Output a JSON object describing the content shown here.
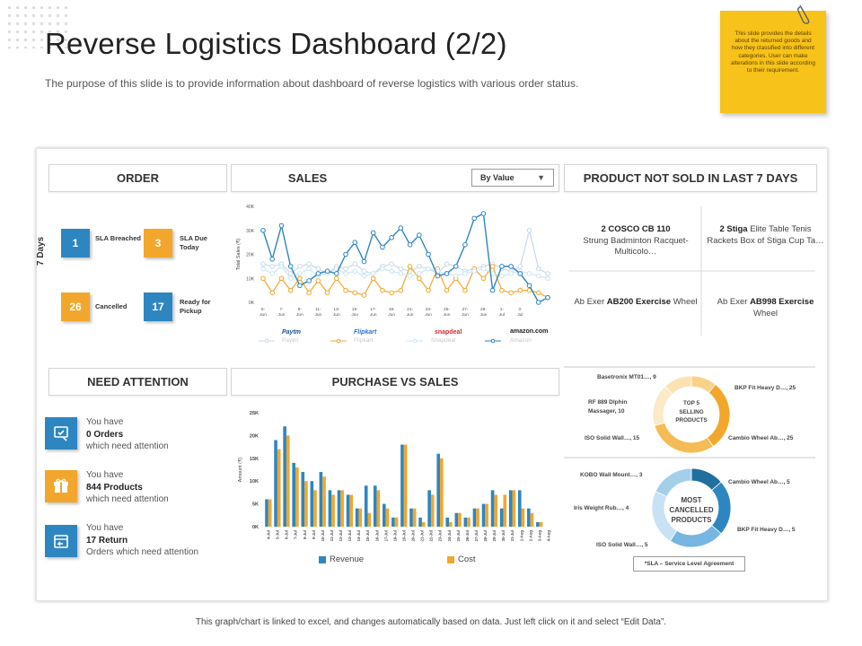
{
  "page": {
    "title": "Reverse Logistics Dashboard (2/2)",
    "subtitle": "The purpose of this slide is to provide information about dashboard of reverse  logistics with various order status.",
    "note": "This slide provides the details about the returned goods and how they classified into different categories. User can make alterations in this slide according to their requirement.",
    "footer": "This graph/chart is linked to excel, and changes automatically based on data. Just left click on it and select “Edit Data”."
  },
  "colors": {
    "blue": "#2e86c1",
    "orange": "#f2a72c",
    "light_blue": "#a9d3ee",
    "light_orange": "#fbe0b0"
  },
  "order": {
    "header": "ORDER",
    "axis_label": "7 Days",
    "tiles": [
      {
        "value": "1",
        "label": "SLA Breached",
        "color": "blue"
      },
      {
        "value": "3",
        "label": "SLA Due Today",
        "color": "orange"
      },
      {
        "value": "26",
        "label": "Cancelled",
        "color": "orange"
      },
      {
        "value": "17",
        "label": "Ready for Pickup",
        "color": "blue"
      }
    ]
  },
  "sales": {
    "header": "SALES",
    "dropdown": "By Value",
    "brands": [
      "Paytm",
      "Flipkart",
      "snapdeal",
      "amazon.com"
    ],
    "legend_ghost": [
      "Paytm",
      "Flipkart",
      "Snapdeal",
      "Amazon"
    ]
  },
  "not_sold": {
    "header": "PRODUCT NOT SOLD IN LAST 7 DAYS",
    "items": [
      {
        "bold": "2 COSCO CB 110",
        "rest": "Strung Badminton Racquet-Multicolo…"
      },
      {
        "bold": "2 Stiga",
        "rest": "Elite Table Tenis Rackets Box of Stiga Cup Ta…"
      },
      {
        "pre": "Ab Exer ",
        "bold": "AB200 Exercise",
        "rest": "Wheel"
      },
      {
        "pre": "Ab Exer ",
        "bold": "AB998 Exercise",
        "rest": "Wheel"
      }
    ]
  },
  "attention": {
    "header": "NEED ATTENTION",
    "items": [
      {
        "pre": "You have",
        "strong": "0 Orders",
        "post": "which need attention",
        "icon": "order-icon",
        "color": "blue"
      },
      {
        "pre": "You have",
        "strong": "844 Products",
        "post": "which need attention",
        "icon": "gift-box-icon",
        "color": "orange"
      },
      {
        "pre": "You have",
        "strong": "17 Return",
        "post": "Orders which need attention",
        "icon": "return-box-icon",
        "color": "blue"
      }
    ]
  },
  "purchase": {
    "header": "PURCHASE VS SALES"
  },
  "donuts": {
    "top_selling": {
      "center": "TOP 5 SELLING PRODUCTS",
      "labels": [
        "Basetronix MT01…, 9",
        "BKP Fit Heavy D…, 25",
        "RF 889 Dlphin Massager, 10",
        "ISO Solid Wall…, 15",
        "Cambio Wheel Ab…, 25"
      ]
    },
    "most_cancelled": {
      "center": "MOST CANCELLED PRODUCTS",
      "labels": [
        "KOBO Wall Mount…, 3",
        "Cambio Wheel Ab…, 5",
        "Iris Weight Rub…, 4",
        "BKP Fit Heavy D…, 5",
        "ISO Solid Wall…, 5"
      ]
    },
    "sla_note": "*SLA – Service Level Agreement"
  },
  "chart_data": [
    {
      "type": "line",
      "title": "Sales",
      "ylabel": "Total Sales (₹)",
      "ylim": [
        0,
        40
      ],
      "yticks": [
        "0K",
        "10K",
        "20K",
        "30K",
        "40K"
      ],
      "x": [
        "5-Jun",
        "6-Jun",
        "7-Jun",
        "8-Jun",
        "9-Jun",
        "10-Jun",
        "11-Jun",
        "12-Jun",
        "13-Jun",
        "14-Jun",
        "15-Jun",
        "16-Jun",
        "17-Jun",
        "18-Jun",
        "19-Jun",
        "20-Jun",
        "21-Jun",
        "22-Jun",
        "23-Jun",
        "24-Jun",
        "25-Jun",
        "26-Jun",
        "27-Jun",
        "28-Jun",
        "29-Jun",
        "30-Jun",
        "1-Jul",
        "2-Jul",
        "3-Jul",
        "4-Jul",
        "5-Jul",
        "6-Jul"
      ],
      "xticks": [
        "5-Jun",
        "7-Jun",
        "9-Jun",
        "11-Jun",
        "13-Jun",
        "15-Jun",
        "17-Jun",
        "19-Jun",
        "21-Jun",
        "23-Jun",
        "25-Jun",
        "27-Jun",
        "29-Jun",
        "1-Jul",
        "3-Jul"
      ],
      "series": [
        {
          "name": "Paytm",
          "color": "#c9d9ea",
          "values": [
            16,
            15,
            16,
            12,
            15,
            16,
            14,
            12,
            15,
            14,
            16,
            13,
            12,
            15,
            16,
            14,
            13,
            15,
            14,
            12,
            16,
            15,
            13,
            14,
            15,
            16,
            14,
            13,
            15,
            30,
            14,
            12
          ]
        },
        {
          "name": "Flipkart",
          "color": "#f2a72c",
          "values": [
            10,
            4,
            10,
            5,
            10,
            4,
            9,
            4,
            10,
            5,
            4,
            3,
            10,
            5,
            4,
            5,
            15,
            10,
            5,
            14,
            5,
            10,
            5,
            14,
            10,
            15,
            5,
            4,
            5,
            5,
            4,
            2
          ]
        },
        {
          "name": "Snapdeal",
          "color": "#c9e6f7",
          "values": [
            14,
            12,
            15,
            10,
            12,
            14,
            11,
            12,
            14,
            12,
            13,
            11,
            12,
            14,
            13,
            12,
            11,
            12,
            14,
            13,
            12,
            11,
            12,
            13,
            14,
            12,
            11,
            12,
            13,
            12,
            11,
            10
          ]
        },
        {
          "name": "Amazon",
          "color": "#2e86c1",
          "values": [
            30,
            18,
            32,
            15,
            7,
            9,
            12,
            13,
            12,
            20,
            25,
            17,
            29,
            23,
            27,
            31,
            24,
            28,
            20,
            11,
            12,
            15,
            24,
            35,
            37,
            5,
            15,
            15,
            12,
            7,
            0,
            2
          ]
        }
      ]
    },
    {
      "type": "bar",
      "title": "Purchase vs Sales",
      "ylabel": "Amount (₹)",
      "ylim": [
        0,
        25
      ],
      "yticks": [
        "0K",
        "5K",
        "10K",
        "15K",
        "20K",
        "25K"
      ],
      "categories": [
        "4-Jul",
        "5-Jul",
        "6-Jul",
        "7-Jul",
        "8-Jul",
        "9-Jul",
        "10-Jul",
        "11-Jul",
        "12-Jul",
        "13-Jul",
        "14-Jul",
        "15-Jul",
        "16-Jul",
        "17-Jul",
        "18-Jul",
        "19-Jul",
        "20-Jul",
        "21-Jul",
        "22-Jul",
        "23-Jul",
        "24-Jul",
        "25-Jul",
        "26-Jul",
        "27-Jul",
        "28-Jul",
        "29-Jul",
        "30-Jul",
        "31-Jul",
        "1-Aug",
        "2-Aug",
        "3-Aug",
        "4-Aug"
      ],
      "series": [
        {
          "name": "Revenue",
          "color": "#2e86c1",
          "values": [
            6,
            19,
            22,
            14,
            12,
            10,
            12,
            8,
            8,
            7,
            4,
            9,
            9,
            5,
            2,
            18,
            4,
            2,
            8,
            16,
            2,
            3,
            2,
            4,
            5,
            8,
            4,
            8,
            8,
            4,
            1,
            0
          ]
        },
        {
          "name": "Cost",
          "color": "#f2a72c",
          "values": [
            6,
            17,
            20,
            13,
            10,
            8,
            11,
            7,
            8,
            7,
            4,
            3,
            8,
            4,
            2,
            18,
            4,
            1,
            7,
            15,
            1,
            3,
            2,
            4,
            5,
            7,
            7,
            8,
            4,
            3,
            1,
            0
          ]
        }
      ],
      "legend": [
        "Revenue",
        "Cost"
      ]
    },
    {
      "type": "pie",
      "title": "TOP 5 SELLING PRODUCTS",
      "categories": [
        "Basetronix MT01…",
        "BKP Fit Heavy D…",
        "Cambio Wheel Ab…",
        "ISO Solid Wall…",
        "RF 889 Dlphin Massager"
      ],
      "values": [
        9,
        25,
        25,
        15,
        10
      ],
      "colors": [
        "#f9d28a",
        "#f2a72c",
        "#f5bb55",
        "#fbe9c8",
        "#fce2b3"
      ]
    },
    {
      "type": "pie",
      "title": "MOST CANCELLED PRODUCTS",
      "categories": [
        "KOBO Wall Mount…",
        "Cambio Wheel Ab…",
        "BKP Fit Heavy D…",
        "ISO Solid Wall…",
        "Iris Weight Rub…"
      ],
      "values": [
        3,
        5,
        5,
        5,
        4
      ],
      "colors": [
        "#1f6f9f",
        "#2e86c1",
        "#76b6e0",
        "#c6e2f4",
        "#a3cfeb"
      ]
    }
  ]
}
